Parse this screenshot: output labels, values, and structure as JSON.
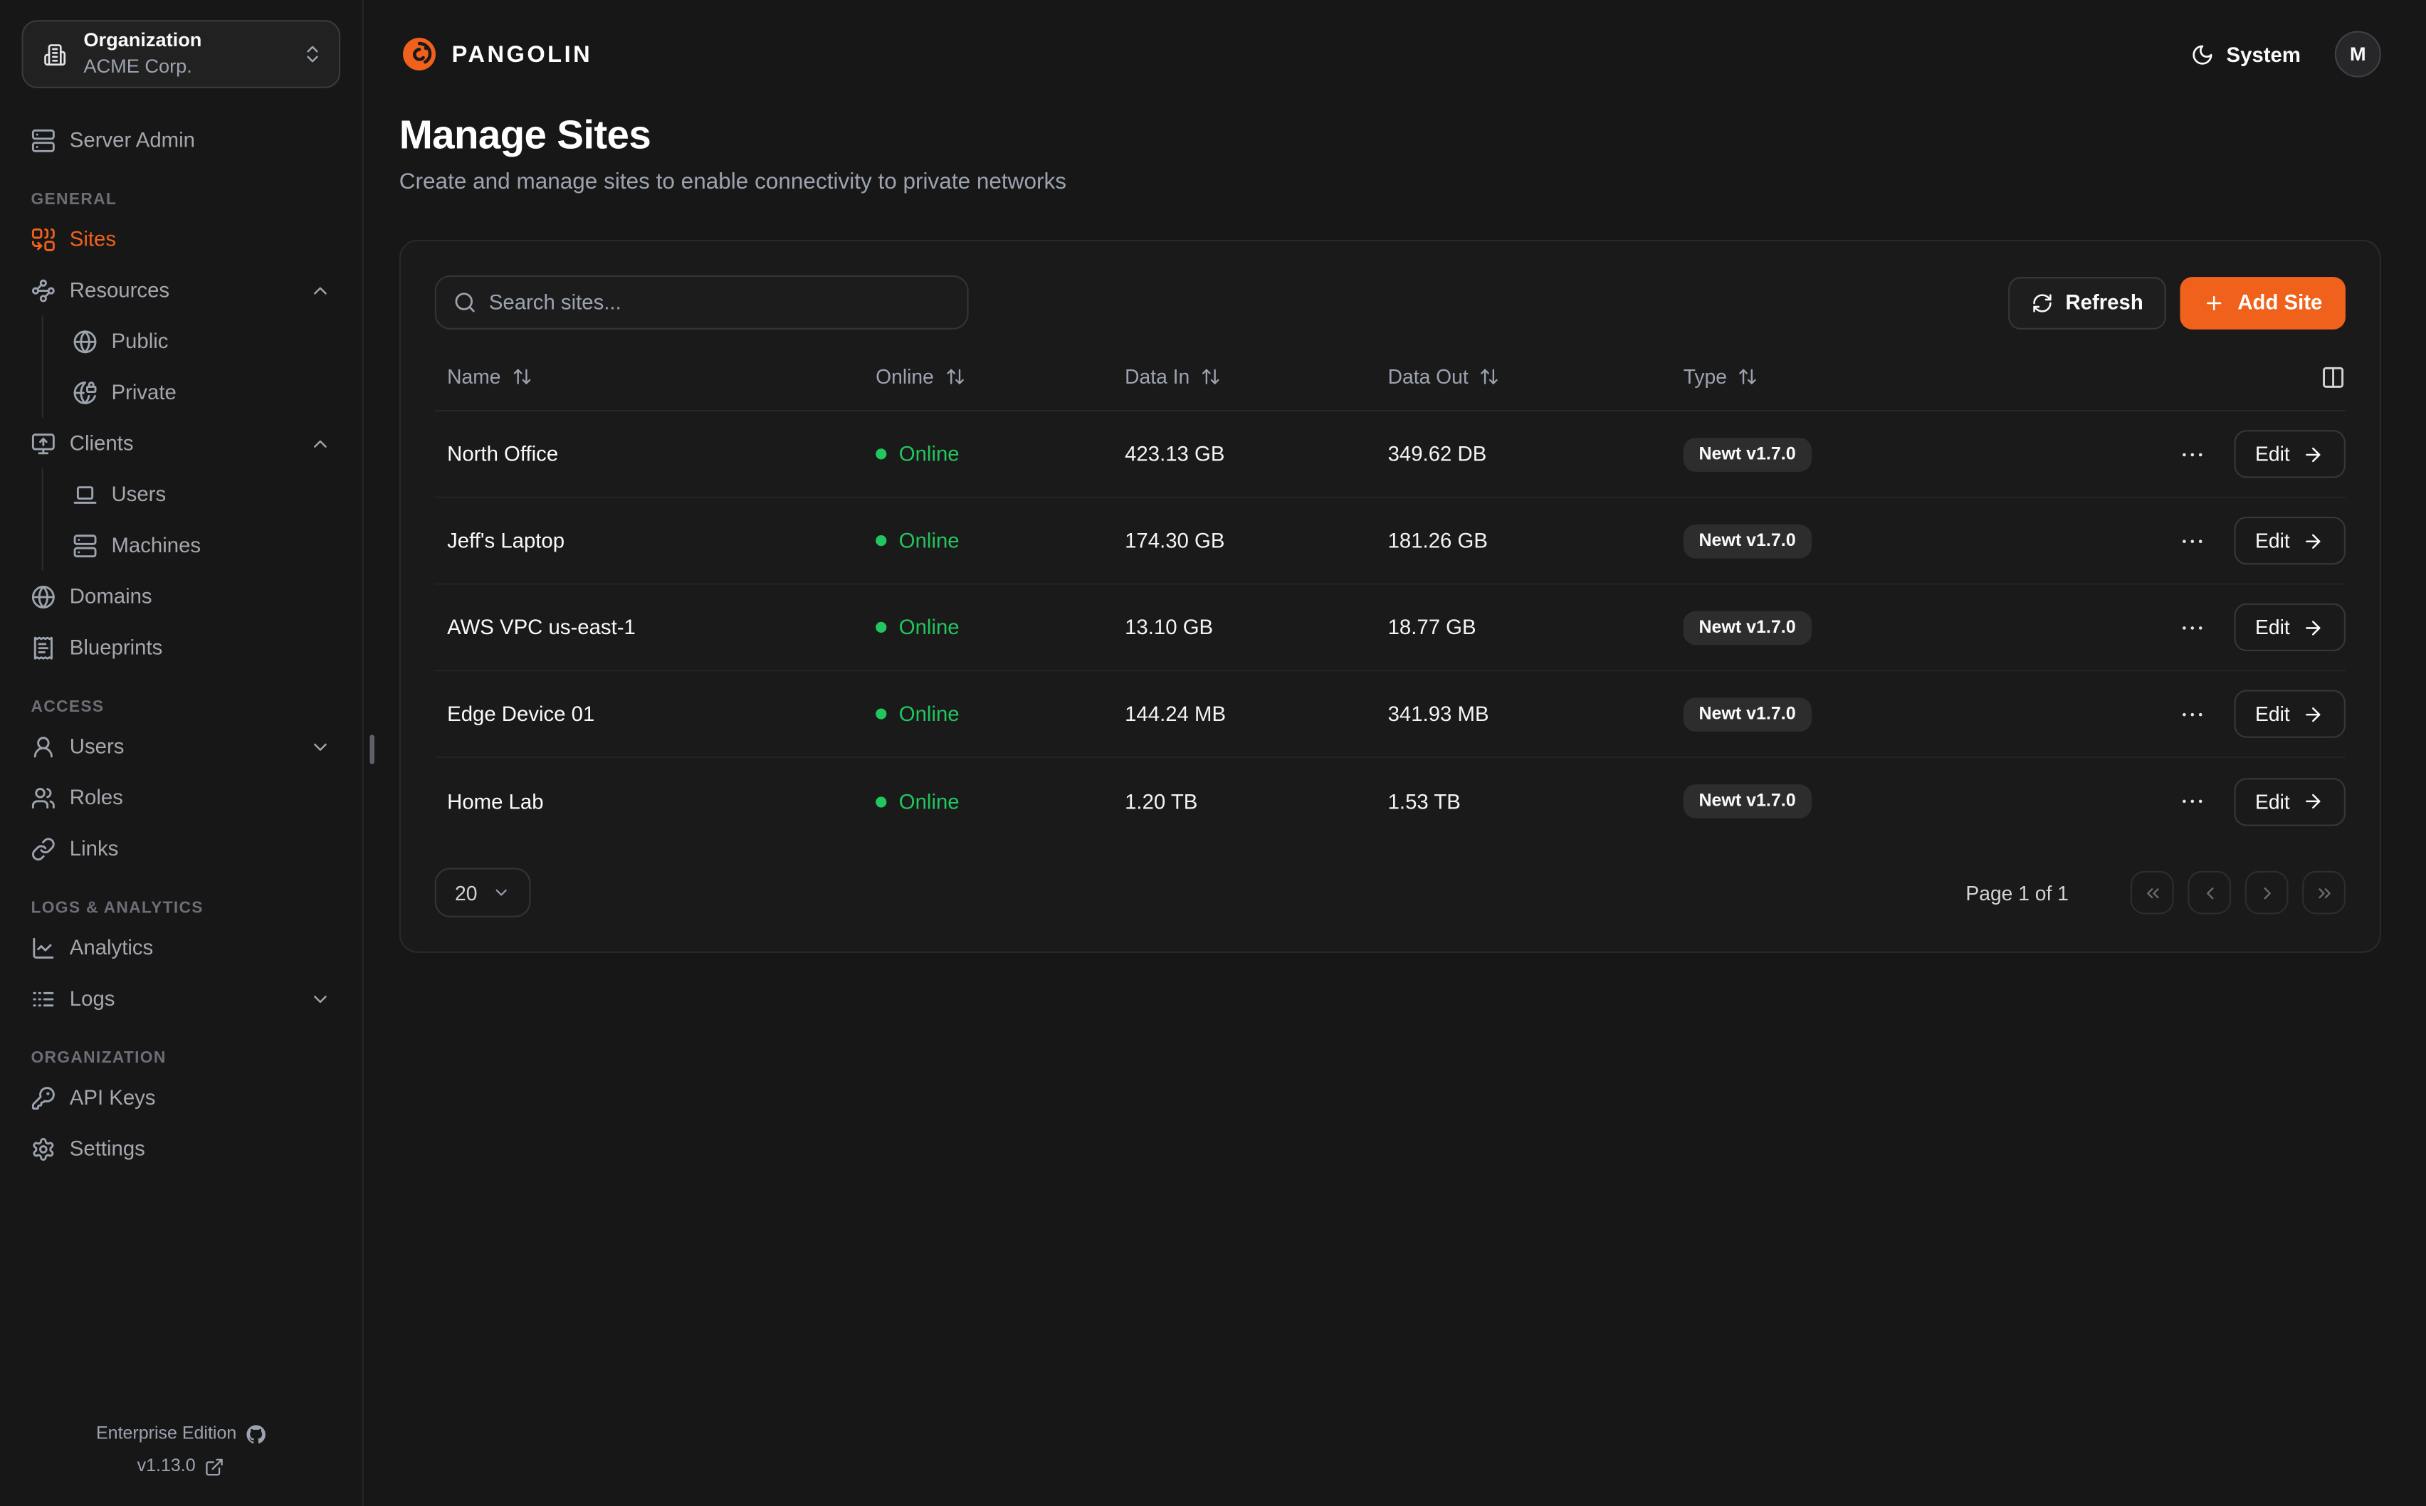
{
  "colors": {
    "accent": "#f0611c",
    "online_green": "#22c55e"
  },
  "org_selector": {
    "label": "Organization",
    "value": "ACME Corp.",
    "icon": "building-icon"
  },
  "sidebar": {
    "server_admin": {
      "label": "Server Admin",
      "icon": "server-icon"
    },
    "sections": [
      {
        "label": "GENERAL",
        "items": [
          {
            "label": "Sites",
            "icon": "combine-icon",
            "active": true
          },
          {
            "label": "Resources",
            "icon": "waypoints-icon",
            "expandable": true,
            "expanded": true,
            "children": [
              {
                "label": "Public",
                "icon": "globe-icon"
              },
              {
                "label": "Private",
                "icon": "globe-lock-icon"
              }
            ]
          },
          {
            "label": "Clients",
            "icon": "monitor-up-icon",
            "expandable": true,
            "expanded": true,
            "children": [
              {
                "label": "Users",
                "icon": "laptop-icon"
              },
              {
                "label": "Machines",
                "icon": "server-icon"
              }
            ]
          },
          {
            "label": "Domains",
            "icon": "globe-icon"
          },
          {
            "label": "Blueprints",
            "icon": "receipt-icon"
          }
        ]
      },
      {
        "label": "ACCESS",
        "items": [
          {
            "label": "Users",
            "icon": "user-icon",
            "expandable": true,
            "expanded": false
          },
          {
            "label": "Roles",
            "icon": "users-icon"
          },
          {
            "label": "Links",
            "icon": "link-icon"
          }
        ]
      },
      {
        "label": "LOGS & ANALYTICS",
        "items": [
          {
            "label": "Analytics",
            "icon": "chart-line-icon"
          },
          {
            "label": "Logs",
            "icon": "logs-icon",
            "expandable": true,
            "expanded": false
          }
        ]
      },
      {
        "label": "ORGANIZATION",
        "items": [
          {
            "label": "API Keys",
            "icon": "key-icon"
          },
          {
            "label": "Settings",
            "icon": "gear-icon"
          }
        ]
      }
    ],
    "footer": {
      "edition": "Enterprise Edition",
      "version": "v1.13.0"
    }
  },
  "header": {
    "brand": "PANGOLIN",
    "theme_label": "System",
    "avatar_initial": "M"
  },
  "page": {
    "title": "Manage Sites",
    "subtitle": "Create and manage sites to enable connectivity to private networks"
  },
  "toolbar": {
    "search_placeholder": "Search sites...",
    "refresh_label": "Refresh",
    "add_site_label": "Add Site"
  },
  "table": {
    "columns": [
      "Name",
      "Online",
      "Data In",
      "Data Out",
      "Type"
    ],
    "rows": [
      {
        "name": "North Office",
        "status": "Online",
        "data_in": "423.13 GB",
        "data_out": "349.62 DB",
        "type": "Newt v1.7.0",
        "edit_label": "Edit"
      },
      {
        "name": "Jeff's Laptop",
        "status": "Online",
        "data_in": "174.30 GB",
        "data_out": "181.26 GB",
        "type": "Newt v1.7.0",
        "edit_label": "Edit"
      },
      {
        "name": "AWS VPC us-east-1",
        "status": "Online",
        "data_in": "13.10 GB",
        "data_out": "18.77 GB",
        "type": "Newt v1.7.0",
        "edit_label": "Edit"
      },
      {
        "name": "Edge Device 01",
        "status": "Online",
        "data_in": "144.24 MB",
        "data_out": "341.93 MB",
        "type": "Newt v1.7.0",
        "edit_label": "Edit"
      },
      {
        "name": "Home Lab",
        "status": "Online",
        "data_in": "1.20 TB",
        "data_out": "1.53 TB",
        "type": "Newt v1.7.0",
        "edit_label": "Edit"
      }
    ]
  },
  "pagination": {
    "page_size": "20",
    "page_label": "Page 1 of 1"
  }
}
